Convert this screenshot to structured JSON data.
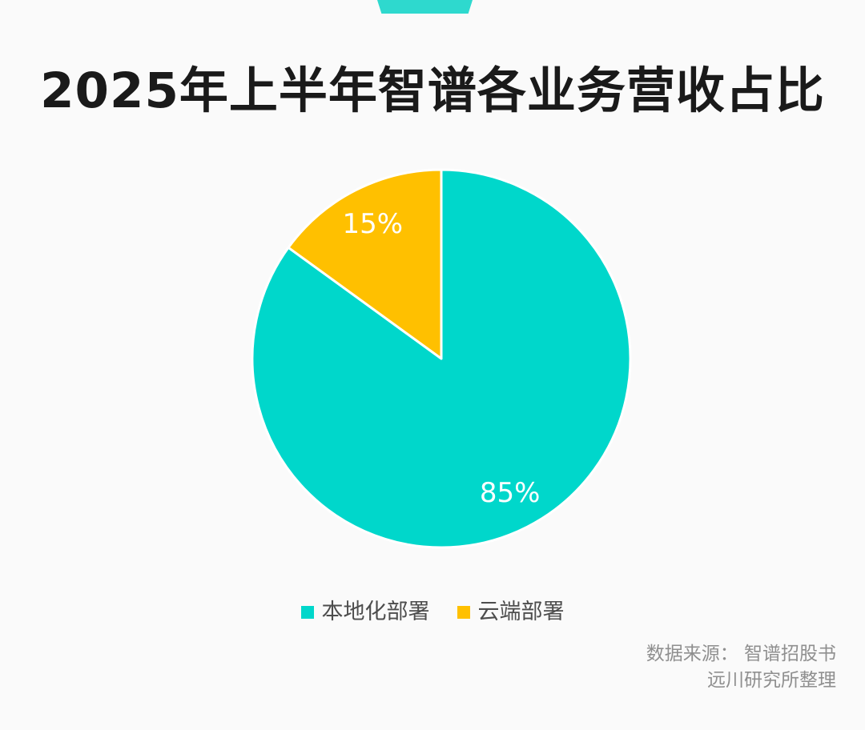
{
  "page": {
    "background_color": "#fafafa",
    "ribbon_color": "#2ed9ce"
  },
  "header": {
    "title_color": "#1a1a1a"
  },
  "chart_data": {
    "type": "pie",
    "title": "2025年上半年智谱各业务营收占比",
    "slices": [
      {
        "label": "本地化部署",
        "value": 85,
        "display": "85%",
        "color": "#00d7cb"
      },
      {
        "label": "云端部署",
        "value": 15,
        "display": "15%",
        "color": "#ffc000"
      }
    ],
    "start_angle_deg": 0,
    "direction": "clockwise",
    "slice_gap_color": "#ffffff",
    "label_color": "#ffffff",
    "label_radius_ratio": 0.8,
    "legend_position": "bottom"
  },
  "legend": {
    "text_color": "#4d4d4d"
  },
  "footer": {
    "source_line1": "数据来源： 智谱招股书",
    "source_line2": "远川研究所整理",
    "text_color": "#8f8f8f"
  }
}
